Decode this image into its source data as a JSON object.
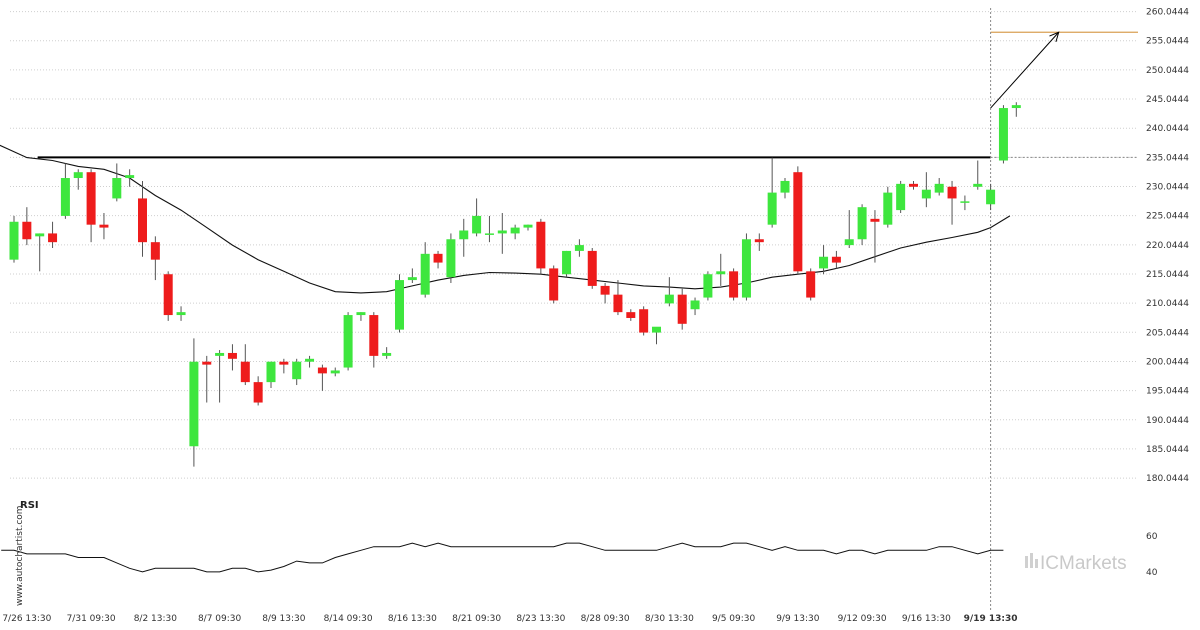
{
  "chart_data": {
    "type": "candlestick",
    "price_axis": {
      "ticks": [
        "260.0444",
        "255.0444",
        "250.0444",
        "245.0444",
        "240.0444",
        "235.0444",
        "230.0444",
        "225.0444",
        "220.0444",
        "215.0444",
        "210.0444",
        "205.0444",
        "200.0444",
        "195.0444",
        "190.0444",
        "185.0444",
        "180.0444"
      ],
      "range": [
        178.0,
        261.0
      ]
    },
    "x_ticks": [
      {
        "label": "7/26 13:30",
        "index": 1
      },
      {
        "label": "7/31 09:30",
        "index": 6
      },
      {
        "label": "8/2 13:30",
        "index": 11
      },
      {
        "label": "8/7 09:30",
        "index": 16
      },
      {
        "label": "8/9 13:30",
        "index": 21
      },
      {
        "label": "8/14 09:30",
        "index": 26
      },
      {
        "label": "8/16 13:30",
        "index": 31
      },
      {
        "label": "8/21 09:30",
        "index": 36
      },
      {
        "label": "8/23 13:30",
        "index": 41
      },
      {
        "label": "8/28 09:30",
        "index": 46
      },
      {
        "label": "8/30 13:30",
        "index": 51
      },
      {
        "label": "9/5 09:30",
        "index": 56
      },
      {
        "label": "9/9 13:30",
        "index": 61
      },
      {
        "label": "9/12 09:30",
        "index": 66
      },
      {
        "label": "9/16 13:30",
        "index": 71
      },
      {
        "label": "9/19 13:30",
        "index": 76,
        "bold": true
      }
    ],
    "candles": [
      {
        "o": 217.5,
        "h": 225,
        "l": 217,
        "c": 224
      },
      {
        "o": 224,
        "h": 226.5,
        "l": 220,
        "c": 221
      },
      {
        "o": 221.5,
        "h": 222,
        "l": 215.5,
        "c": 222
      },
      {
        "o": 222,
        "h": 224,
        "l": 219.5,
        "c": 220.5
      },
      {
        "o": 225,
        "h": 234,
        "l": 224.5,
        "c": 231.5
      },
      {
        "o": 231.5,
        "h": 233,
        "l": 229.5,
        "c": 232.5
      },
      {
        "o": 232.5,
        "h": 233,
        "l": 220.5,
        "c": 223.5
      },
      {
        "o": 223.5,
        "h": 225.5,
        "l": 221,
        "c": 223
      },
      {
        "o": 228,
        "h": 234,
        "l": 227.5,
        "c": 231.5
      },
      {
        "o": 231.5,
        "h": 233,
        "l": 230,
        "c": 232
      },
      {
        "o": 228,
        "h": 231,
        "l": 218,
        "c": 220.5
      },
      {
        "o": 220.5,
        "h": 221.5,
        "l": 214,
        "c": 217.5
      },
      {
        "o": 215,
        "h": 215.5,
        "l": 207,
        "c": 208
      },
      {
        "o": 208,
        "h": 209.5,
        "l": 207,
        "c": 208.5
      },
      {
        "o": 185.5,
        "h": 204,
        "l": 182,
        "c": 200
      },
      {
        "o": 200,
        "h": 201,
        "l": 193,
        "c": 199.5
      },
      {
        "o": 201,
        "h": 202,
        "l": 193,
        "c": 201.5
      },
      {
        "o": 201.5,
        "h": 203,
        "l": 198.5,
        "c": 200.5
      },
      {
        "o": 200,
        "h": 203,
        "l": 196,
        "c": 196.5
      },
      {
        "o": 196.5,
        "h": 197.5,
        "l": 192.5,
        "c": 193
      },
      {
        "o": 196.5,
        "h": 200,
        "l": 195.5,
        "c": 200
      },
      {
        "o": 200,
        "h": 200.5,
        "l": 198,
        "c": 199.5
      },
      {
        "o": 197,
        "h": 200.5,
        "l": 196,
        "c": 200
      },
      {
        "o": 200,
        "h": 201,
        "l": 199,
        "c": 200.5
      },
      {
        "o": 199,
        "h": 199.5,
        "l": 195,
        "c": 198
      },
      {
        "o": 198,
        "h": 199,
        "l": 197.5,
        "c": 198.5
      },
      {
        "o": 199,
        "h": 208.5,
        "l": 198.5,
        "c": 208
      },
      {
        "o": 208,
        "h": 208.5,
        "l": 207,
        "c": 208.5
      },
      {
        "o": 208,
        "h": 208.5,
        "l": 199,
        "c": 201
      },
      {
        "o": 201,
        "h": 202.5,
        "l": 200.5,
        "c": 201.5
      },
      {
        "o": 205.5,
        "h": 215,
        "l": 205,
        "c": 214
      },
      {
        "o": 214,
        "h": 216,
        "l": 213.5,
        "c": 214.5
      },
      {
        "o": 211.5,
        "h": 220.5,
        "l": 211,
        "c": 218.5
      },
      {
        "o": 218.5,
        "h": 219,
        "l": 216,
        "c": 217
      },
      {
        "o": 214.5,
        "h": 222,
        "l": 213.5,
        "c": 221
      },
      {
        "o": 221,
        "h": 224.5,
        "l": 218,
        "c": 222.5
      },
      {
        "o": 222,
        "h": 228,
        "l": 221.5,
        "c": 225
      },
      {
        "o": 222,
        "h": 225,
        "l": 220.5,
        "c": 222
      },
      {
        "o": 222,
        "h": 225.5,
        "l": 218.5,
        "c": 222.5
      },
      {
        "o": 222,
        "h": 223.5,
        "l": 221,
        "c": 223
      },
      {
        "o": 223,
        "h": 223.5,
        "l": 222.5,
        "c": 223.5
      },
      {
        "o": 224,
        "h": 224.5,
        "l": 215,
        "c": 216
      },
      {
        "o": 216,
        "h": 216.5,
        "l": 210,
        "c": 210.5
      },
      {
        "o": 215,
        "h": 219,
        "l": 214.5,
        "c": 219
      },
      {
        "o": 219,
        "h": 221,
        "l": 218,
        "c": 220
      },
      {
        "o": 219,
        "h": 219.5,
        "l": 212.5,
        "c": 213
      },
      {
        "o": 213,
        "h": 213.5,
        "l": 210,
        "c": 211.5
      },
      {
        "o": 211.5,
        "h": 214,
        "l": 208,
        "c": 208.5
      },
      {
        "o": 208.5,
        "h": 209,
        "l": 207,
        "c": 207.5
      },
      {
        "o": 209,
        "h": 209.5,
        "l": 204.5,
        "c": 205
      },
      {
        "o": 205,
        "h": 205.5,
        "l": 203,
        "c": 206
      },
      {
        "o": 210,
        "h": 214.5,
        "l": 209.5,
        "c": 211.5
      },
      {
        "o": 211.5,
        "h": 212.5,
        "l": 205.5,
        "c": 206.5
      },
      {
        "o": 209,
        "h": 211,
        "l": 208,
        "c": 210.5
      },
      {
        "o": 211,
        "h": 215.5,
        "l": 210.5,
        "c": 215
      },
      {
        "o": 215,
        "h": 218.5,
        "l": 213,
        "c": 215.5
      },
      {
        "o": 215.5,
        "h": 216,
        "l": 210.5,
        "c": 211
      },
      {
        "o": 211,
        "h": 222,
        "l": 210.5,
        "c": 221
      },
      {
        "o": 221,
        "h": 222,
        "l": 219,
        "c": 220.5
      },
      {
        "o": 223.5,
        "h": 235,
        "l": 223,
        "c": 229
      },
      {
        "o": 229,
        "h": 231.5,
        "l": 228,
        "c": 231
      },
      {
        "o": 232.5,
        "h": 233.5,
        "l": 215,
        "c": 215.5
      },
      {
        "o": 215.5,
        "h": 216,
        "l": 210.5,
        "c": 211
      },
      {
        "o": 216,
        "h": 220,
        "l": 215,
        "c": 218
      },
      {
        "o": 218,
        "h": 219,
        "l": 216,
        "c": 217
      },
      {
        "o": 220,
        "h": 226,
        "l": 219.5,
        "c": 221
      },
      {
        "o": 221,
        "h": 227,
        "l": 220,
        "c": 226.5
      },
      {
        "o": 224.5,
        "h": 226,
        "l": 217,
        "c": 224
      },
      {
        "o": 223.5,
        "h": 230,
        "l": 223,
        "c": 229
      },
      {
        "o": 226,
        "h": 231,
        "l": 225.5,
        "c": 230.5
      },
      {
        "o": 230.5,
        "h": 231,
        "l": 229.5,
        "c": 230
      },
      {
        "o": 228,
        "h": 232.5,
        "l": 226.5,
        "c": 229.5
      },
      {
        "o": 229,
        "h": 231.5,
        "l": 228.5,
        "c": 230.5
      },
      {
        "o": 230,
        "h": 231,
        "l": 223.5,
        "c": 228
      },
      {
        "o": 227.5,
        "h": 228.5,
        "l": 226,
        "c": 227.5
      },
      {
        "o": 230,
        "h": 234.5,
        "l": 229.5,
        "c": 230.5
      },
      {
        "o": 227,
        "h": 230.5,
        "l": 226,
        "c": 229.5
      },
      {
        "o": 234.5,
        "h": 244,
        "l": 234,
        "c": 243.5
      },
      {
        "o": 243.5,
        "h": 244.5,
        "l": 242,
        "c": 244
      }
    ],
    "moving_average": [
      {
        "i": -1.5,
        "v": 237.5
      },
      {
        "i": 1,
        "v": 235
      },
      {
        "i": 3,
        "v": 234.5
      },
      {
        "i": 5,
        "v": 233.5
      },
      {
        "i": 7,
        "v": 233
      },
      {
        "i": 9,
        "v": 231.5
      },
      {
        "i": 11,
        "v": 228.5
      },
      {
        "i": 13,
        "v": 226
      },
      {
        "i": 15,
        "v": 223
      },
      {
        "i": 17,
        "v": 220
      },
      {
        "i": 19,
        "v": 217.5
      },
      {
        "i": 21,
        "v": 215.5
      },
      {
        "i": 23,
        "v": 213.5
      },
      {
        "i": 25,
        "v": 212
      },
      {
        "i": 27,
        "v": 211.8
      },
      {
        "i": 29,
        "v": 212
      },
      {
        "i": 31,
        "v": 213
      },
      {
        "i": 33,
        "v": 214
      },
      {
        "i": 35,
        "v": 214.8
      },
      {
        "i": 37,
        "v": 215.3
      },
      {
        "i": 39,
        "v": 215.2
      },
      {
        "i": 41,
        "v": 215
      },
      {
        "i": 43,
        "v": 214.5
      },
      {
        "i": 45,
        "v": 214
      },
      {
        "i": 47,
        "v": 213.5
      },
      {
        "i": 49,
        "v": 213
      },
      {
        "i": 51,
        "v": 212.8
      },
      {
        "i": 53,
        "v": 212.5
      },
      {
        "i": 55,
        "v": 212.8
      },
      {
        "i": 57,
        "v": 213.5
      },
      {
        "i": 59,
        "v": 214.5
      },
      {
        "i": 61,
        "v": 215
      },
      {
        "i": 63,
        "v": 215.5
      },
      {
        "i": 65,
        "v": 216.5
      },
      {
        "i": 67,
        "v": 218
      },
      {
        "i": 69,
        "v": 219.5
      },
      {
        "i": 71,
        "v": 220.5
      },
      {
        "i": 73,
        "v": 221.3
      },
      {
        "i": 75,
        "v": 222.2
      },
      {
        "i": 76,
        "v": 223
      },
      {
        "i": 77.5,
        "v": 225
      }
    ],
    "resistance_level": {
      "value": 235.0444,
      "from_index": 2
    },
    "target_level": {
      "value": 256.5,
      "from_index": 76
    },
    "projection_arrow": {
      "from": {
        "index": 76,
        "value": 243.5
      },
      "to": {
        "index": 81.3,
        "value": 256.5
      }
    },
    "rsi": {
      "label": "RSI",
      "ticks": [
        60,
        40
      ],
      "range": [
        30,
        66
      ],
      "values": [
        52,
        52,
        50,
        50,
        50,
        50,
        48,
        48,
        48,
        45,
        42,
        40,
        42,
        42,
        42,
        42,
        40,
        40,
        42,
        42,
        40,
        41,
        43,
        46,
        45,
        45,
        48,
        50,
        52,
        54,
        54,
        54,
        56,
        54,
        56,
        54,
        54,
        54,
        54,
        54,
        54,
        54,
        54,
        54,
        56,
        56,
        54,
        52,
        52,
        52,
        52,
        52,
        54,
        56,
        54,
        54,
        54,
        56,
        56,
        54,
        52,
        54,
        52,
        52,
        52,
        50,
        52,
        52,
        50,
        52,
        52,
        52,
        52,
        54,
        54,
        52,
        50,
        52,
        52
      ]
    },
    "grid": {
      "y": true,
      "x": false
    },
    "colors": {
      "up": "#3ee63e",
      "down": "#ee1c1c",
      "wick": "#555555",
      "ma": "#111111",
      "level": "#000000",
      "target": "#d9a055",
      "arrow": "#000000",
      "grid": "#cfcfcf",
      "rsi": "#111111"
    }
  },
  "side_watermark": "www.autochartist.com",
  "brand": "ICMarkets"
}
